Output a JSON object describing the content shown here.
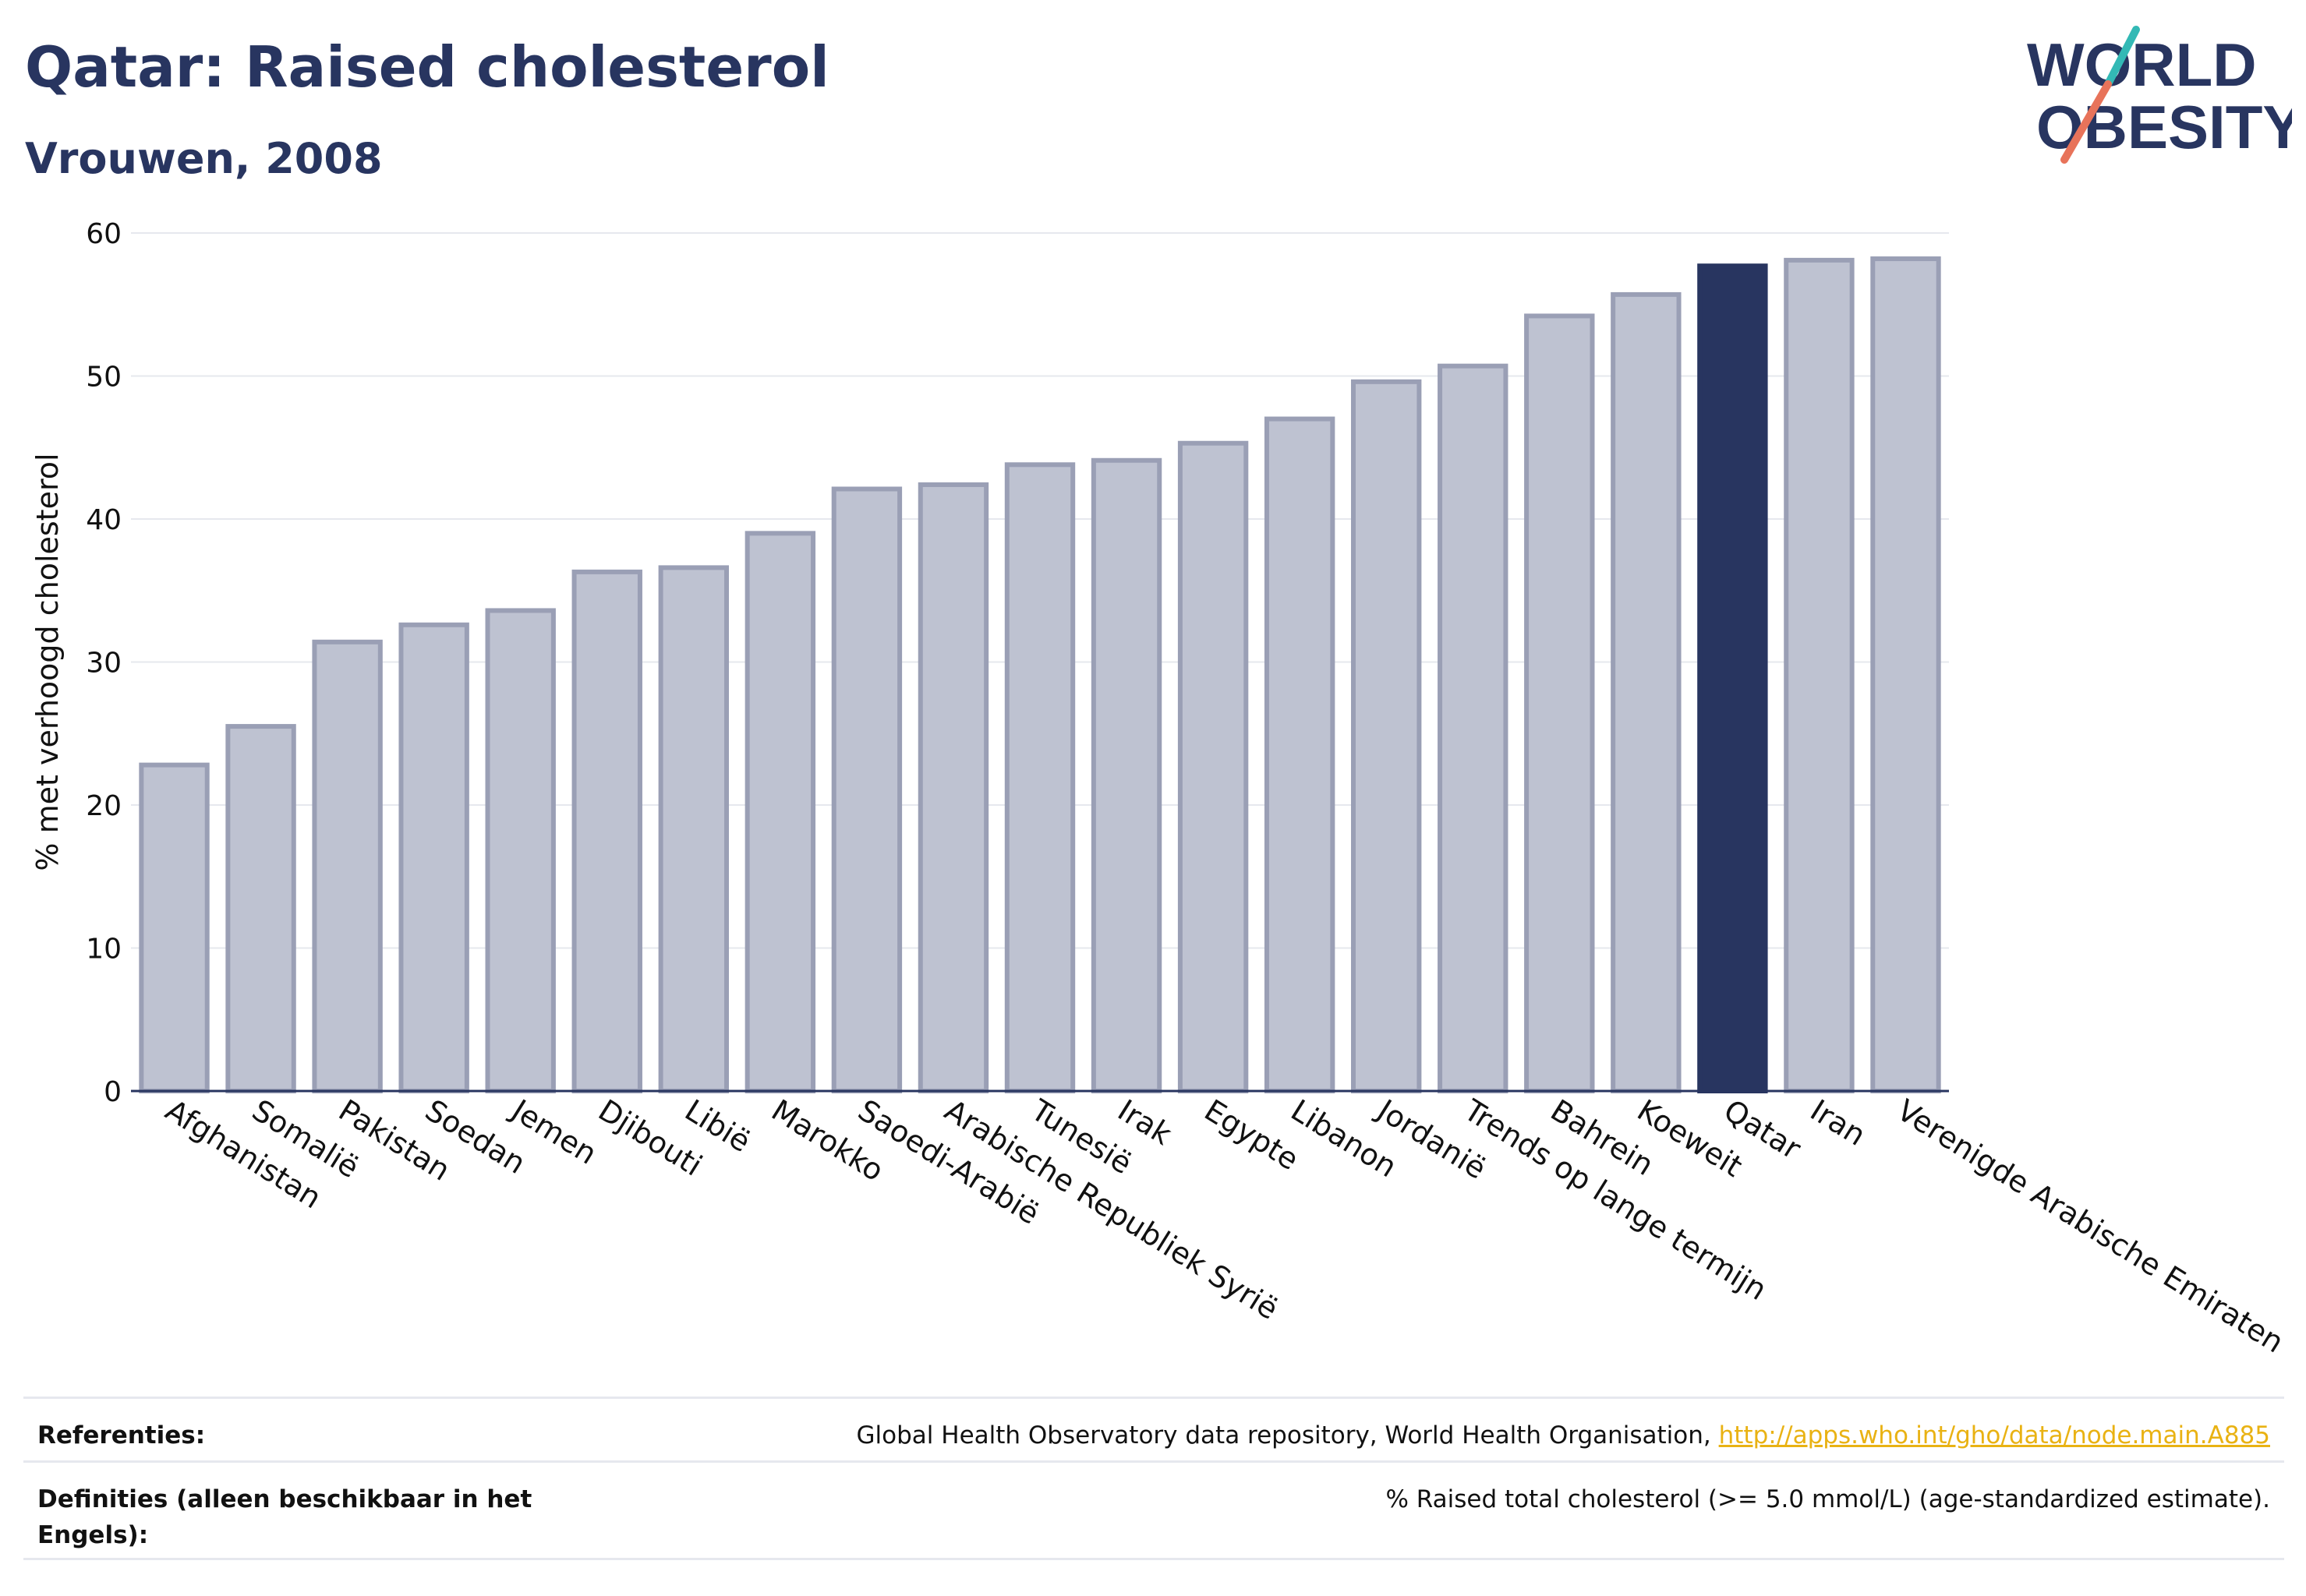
{
  "header": {
    "title": "Qatar: Raised cholesterol",
    "subtitle": "Vrouwen, 2008"
  },
  "logo": {
    "line1": "WORLD",
    "line2": "OBESITY"
  },
  "colors": {
    "navy": "#283560",
    "bar_fill": "#bec2d1",
    "bar_stroke": "#9a9fb5",
    "highlight": "#283560",
    "grid": "#e6e8ee",
    "logo_teal": "#33b9b5",
    "logo_coral": "#e8735a",
    "link": "#e9b213"
  },
  "chart_data": {
    "type": "bar",
    "title": "",
    "xlabel": "",
    "ylabel": "% met verhoogd cholesterol",
    "ylim": [
      0,
      60
    ],
    "yticks": [
      0,
      10,
      20,
      30,
      40,
      50,
      60
    ],
    "grid": true,
    "highlight": "Qatar",
    "categories": [
      "Afghanistan",
      "Somalië",
      "Pakistan",
      "Soedan",
      "Jemen",
      "Djibouti",
      "Libië",
      "Marokko",
      "Saoedi-Arabië",
      "Arabische Republiek Syrië",
      "Tunesië",
      "Irak",
      "Egypte",
      "Libanon",
      "Jordanië",
      "Trends op lange termijn",
      "Bahrein",
      "Koeweit",
      "Qatar",
      "Iran",
      "Verenigde Arabische Emiraten"
    ],
    "values": [
      22.8,
      25.5,
      31.4,
      32.6,
      33.6,
      36.3,
      36.6,
      39.0,
      42.1,
      42.4,
      43.8,
      44.1,
      45.3,
      47.0,
      49.6,
      50.7,
      54.2,
      55.7,
      57.7,
      58.1,
      58.2
    ]
  },
  "footer": {
    "references_label": "Referenties:",
    "references_text": "Global Health Observatory data repository, World Health Organisation, ",
    "references_link": "http://apps.who.int/gho/data/node.main.A885",
    "definitions_label": "Definities (alleen beschikbaar in het Engels):",
    "definitions_text": "% Raised total cholesterol (>= 5.0 mmol/L) (age-standardized estimate)."
  }
}
